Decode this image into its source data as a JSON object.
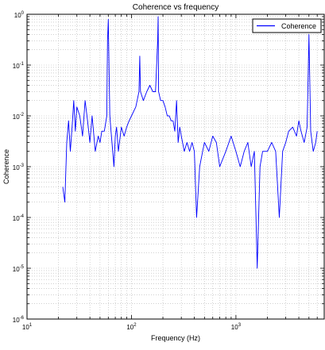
{
  "chart_data": {
    "type": "line",
    "title": "Coherence vs frequency",
    "xlabel": "Frequency (Hz)",
    "ylabel": "Coherence",
    "xscale": "log",
    "yscale": "log",
    "xlim": [
      10,
      7000
    ],
    "ylim": [
      1e-06,
      1
    ],
    "grid": "on (major and minor, dotted)",
    "legend_position": "top-right",
    "x_ticks": [
      {
        "value": 10,
        "base": "10",
        "exp": "1"
      },
      {
        "value": 100,
        "base": "10",
        "exp": "2"
      },
      {
        "value": 1000,
        "base": "10",
        "exp": "3"
      }
    ],
    "y_ticks": [
      {
        "value": 1e-06,
        "base": "10",
        "exp": "-6"
      },
      {
        "value": 1e-05,
        "base": "10",
        "exp": "-5"
      },
      {
        "value": 0.0001,
        "base": "10",
        "exp": "-4"
      },
      {
        "value": 0.001,
        "base": "10",
        "exp": "-3"
      },
      {
        "value": 0.01,
        "base": "10",
        "exp": "-2"
      },
      {
        "value": 0.1,
        "base": "10",
        "exp": "-1"
      },
      {
        "value": 1,
        "base": "10",
        "exp": "0"
      }
    ],
    "series": [
      {
        "name": "Coherence",
        "color": "#0000ff",
        "x": [
          22,
          23,
          24,
          25,
          26,
          27,
          28,
          29,
          30,
          32,
          34,
          36,
          38,
          40,
          42,
          45,
          48,
          50,
          52,
          55,
          58,
          59,
          60,
          61,
          62,
          65,
          68,
          70,
          72,
          75,
          80,
          85,
          90,
          95,
          100,
          110,
          118,
          120,
          122,
          130,
          140,
          150,
          160,
          170,
          178,
          180,
          182,
          190,
          200,
          210,
          220,
          230,
          240,
          250,
          260,
          270,
          280,
          290,
          300,
          320,
          340,
          360,
          380,
          400,
          420,
          450,
          480,
          500,
          550,
          600,
          650,
          700,
          800,
          900,
          1000,
          1100,
          1200,
          1300,
          1400,
          1500,
          1600,
          1700,
          1800,
          2000,
          2200,
          2400,
          2600,
          2800,
          3000,
          3200,
          3500,
          3800,
          4000,
          4200,
          4500,
          4800,
          5000,
          5200,
          5500,
          5800,
          6000
        ],
        "y": [
          0.0004,
          0.0002,
          0.003,
          0.008,
          0.002,
          0.006,
          0.02,
          0.005,
          0.015,
          0.01,
          0.004,
          0.02,
          0.008,
          0.003,
          0.01,
          0.002,
          0.004,
          0.003,
          0.005,
          0.005,
          0.01,
          0.3,
          0.8,
          0.1,
          0.01,
          0.003,
          0.001,
          0.004,
          0.006,
          0.002,
          0.006,
          0.004,
          0.006,
          0.008,
          0.01,
          0.015,
          0.03,
          0.15,
          0.03,
          0.02,
          0.03,
          0.04,
          0.03,
          0.03,
          0.3,
          0.9,
          0.03,
          0.02,
          0.02,
          0.015,
          0.01,
          0.01,
          0.008,
          0.008,
          0.005,
          0.02,
          0.003,
          0.006,
          0.004,
          0.002,
          0.003,
          0.002,
          0.003,
          0.002,
          0.0001,
          0.001,
          0.002,
          0.003,
          0.002,
          0.004,
          0.003,
          0.001,
          0.002,
          0.004,
          0.002,
          0.001,
          0.002,
          0.003,
          0.001,
          0.002,
          1e-05,
          0.001,
          0.002,
          0.002,
          0.003,
          0.002,
          0.0001,
          0.002,
          0.003,
          0.005,
          0.006,
          0.004,
          0.008,
          0.005,
          0.003,
          0.006,
          0.4,
          0.005,
          0.002,
          0.003,
          0.005
        ]
      }
    ]
  }
}
